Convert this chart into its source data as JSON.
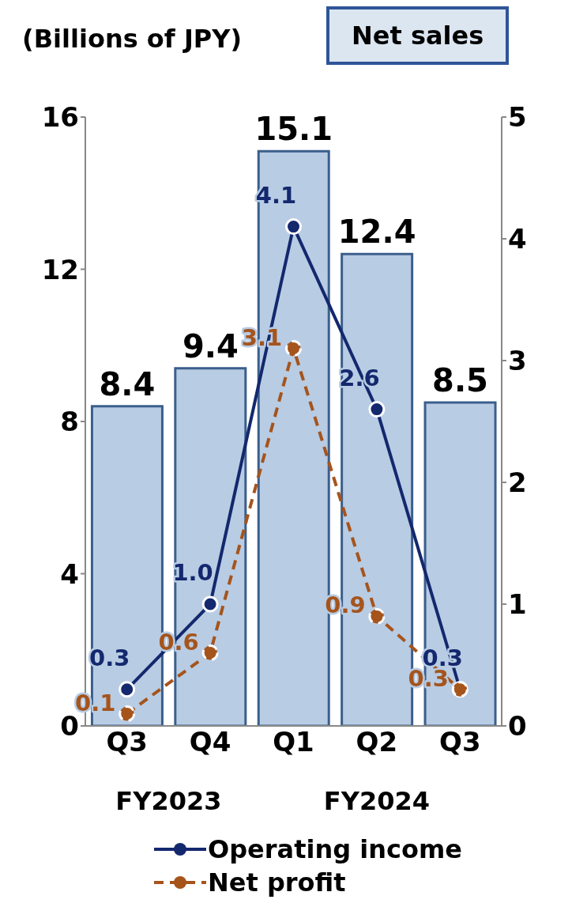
{
  "chart_data": {
    "type": "bar",
    "ylabel": "(Billions of JPY)",
    "categories": [
      "Q3",
      "Q4",
      "Q1",
      "Q2",
      "Q3"
    ],
    "series": [
      {
        "name": "Net sales",
        "color": "#b8cce4",
        "values": [
          8.4,
          9.4,
          15.1,
          12.4,
          8.5
        ],
        "value_labels": [
          "8.4",
          "9.4",
          "15.1",
          "12.4",
          "8.5"
        ]
      },
      {
        "name": "Operating income",
        "type": "line",
        "axis": "y2",
        "color": "#14286e",
        "values": [
          0.3,
          1.0,
          4.1,
          2.6,
          0.3
        ],
        "value_labels": [
          "0.3",
          "1.0",
          "4.1",
          "2.6",
          "0.3"
        ]
      },
      {
        "name": "Net profit",
        "type": "line",
        "axis": "y2",
        "color": "#a5541c",
        "line_style": "dashed",
        "values": [
          0.1,
          0.6,
          3.1,
          0.9,
          0.3
        ],
        "value_labels": [
          "0.1",
          "0.6",
          "3.1",
          "0.9",
          "0.3"
        ]
      }
    ],
    "annotations": [
      "FY2023",
      "FY2024"
    ],
    "ylim": [
      0,
      16
    ],
    "yticks": [
      0,
      4,
      8,
      12,
      16
    ],
    "y2lim": [
      0,
      5
    ],
    "y2ticks": [
      0,
      1,
      2,
      3,
      4,
      5
    ],
    "grid": false,
    "legend": "bottom",
    "marker": "circle"
  }
}
